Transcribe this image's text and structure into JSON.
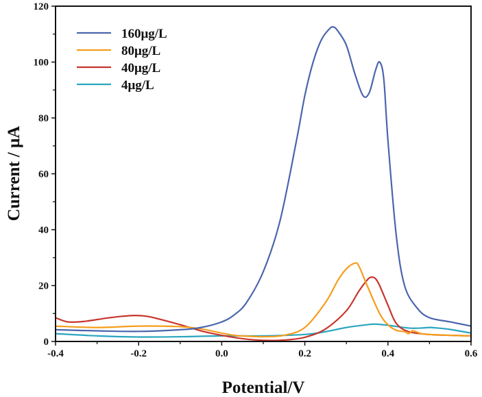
{
  "chart_data": {
    "type": "line",
    "title": "",
    "xlabel": "Potential/V",
    "ylabel": "Current / μA",
    "xlim": [
      -0.4,
      0.6
    ],
    "ylim": [
      0,
      120
    ],
    "xticks": [
      -0.4,
      -0.2,
      0.0,
      0.2,
      0.4,
      0.6
    ],
    "xtick_labels": [
      "-0.4",
      "-0.2",
      "0.0",
      "0.2",
      "0.4",
      "0.6"
    ],
    "yticks": [
      0,
      20,
      40,
      60,
      80,
      100,
      120
    ],
    "ytick_labels": [
      "0",
      "20",
      "40",
      "60",
      "80",
      "100",
      "120"
    ],
    "grid": false,
    "legend_position": "top-left",
    "series": [
      {
        "name": "160μg/L",
        "color": "#4a65ad",
        "x": [
          -0.4,
          -0.3,
          -0.2,
          -0.1,
          -0.05,
          0.0,
          0.03,
          0.06,
          0.1,
          0.14,
          0.18,
          0.2,
          0.22,
          0.24,
          0.26,
          0.27,
          0.28,
          0.3,
          0.32,
          0.34,
          0.355,
          0.37,
          0.38,
          0.39,
          0.4,
          0.42,
          0.44,
          0.47,
          0.5,
          0.55,
          0.6
        ],
        "y": [
          4.2,
          3.8,
          3.6,
          4.2,
          5.0,
          7.0,
          9.5,
          14,
          25,
          43,
          72,
          88,
          100,
          108,
          112,
          112.5,
          111,
          106,
          96,
          88,
          89,
          97,
          100,
          94,
          72,
          38,
          20,
          12,
          8.5,
          7,
          5.5
        ]
      },
      {
        "name": " 80μg/L",
        "color": "#f59d1c",
        "x": [
          -0.4,
          -0.3,
          -0.2,
          -0.1,
          -0.05,
          0.0,
          0.03,
          0.06,
          0.1,
          0.15,
          0.2,
          0.25,
          0.28,
          0.3,
          0.32,
          0.33,
          0.35,
          0.38,
          0.4,
          0.42,
          0.44,
          0.45,
          0.46,
          0.48,
          0.5,
          0.55,
          0.6
        ],
        "y": [
          5.5,
          5.0,
          5.5,
          5.3,
          4.5,
          3.0,
          2.2,
          1.9,
          1.7,
          2.2,
          5.0,
          14,
          22,
          26,
          28,
          27,
          20,
          10,
          6,
          4,
          3.5,
          2.8,
          3.8,
          2.8,
          2.5,
          2.2,
          2.0
        ]
      },
      {
        "name": "40μg/L",
        "color": "#c8352c",
        "x": [
          -0.4,
          -0.37,
          -0.33,
          -0.28,
          -0.24,
          -0.21,
          -0.18,
          -0.15,
          -0.1,
          -0.05,
          0.0,
          0.05,
          0.1,
          0.15,
          0.2,
          0.25,
          0.3,
          0.33,
          0.35,
          0.36,
          0.37,
          0.38,
          0.4,
          0.42,
          0.45,
          0.5,
          0.55,
          0.6
        ],
        "y": [
          8.5,
          7.0,
          7.2,
          8.3,
          9.0,
          9.3,
          9.0,
          8.0,
          6.0,
          3.8,
          2.2,
          1.0,
          0.4,
          0.5,
          1.5,
          4.5,
          11,
          18,
          22,
          23,
          22.5,
          20,
          13,
          6.5,
          3.5,
          2.5,
          2.2,
          2.0
        ]
      },
      {
        "name": "4μg/L",
        "color": "#29a5c0",
        "x": [
          -0.4,
          -0.3,
          -0.2,
          -0.1,
          0.0,
          0.1,
          0.2,
          0.25,
          0.3,
          0.35,
          0.37,
          0.4,
          0.45,
          0.48,
          0.5,
          0.52,
          0.55,
          0.6
        ],
        "y": [
          2.8,
          2.0,
          1.6,
          1.7,
          2.0,
          2.0,
          2.5,
          3.5,
          5.0,
          6.0,
          6.2,
          5.8,
          4.8,
          4.8,
          5.0,
          4.8,
          4.3,
          3.0
        ]
      }
    ]
  }
}
